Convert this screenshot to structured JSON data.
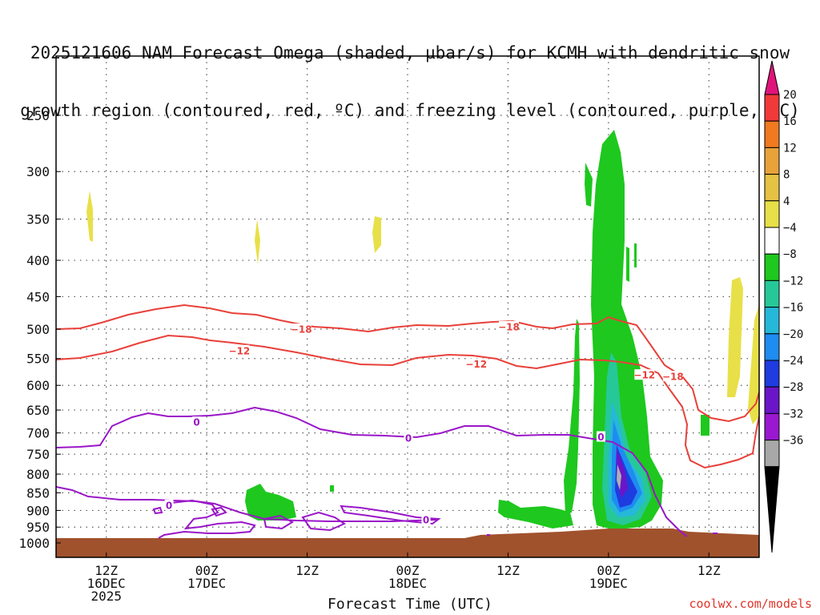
{
  "title_lines": [
    "2025121606 NAM Forecast Omega (shaded, µbar/s) for KCMH with dendritic snow",
    "growth region (contoured, red, ºC) and freezing level (contoured, purple, ºC)"
  ],
  "credit": "coolwx.com/models",
  "chart_data": {
    "type": "time-height cross-section",
    "title": "2025121606 NAM Forecast Omega (shaded, µbar/s) for KCMH with dendritic snow growth region (contoured, red, ºC) and freezing level (contoured, purple, ºC)",
    "xlabel": "Forecast Time (UTC)",
    "ylabel": "",
    "x_range_hours": [
      0,
      84
    ],
    "y_range_hPa": [
      1000,
      200
    ],
    "y_scale": "log-pressure",
    "grid": true,
    "y_ticks": [
      250,
      300,
      350,
      400,
      450,
      500,
      550,
      600,
      650,
      700,
      750,
      800,
      850,
      900,
      950,
      1000
    ],
    "x_ticks": [
      {
        "hour": 6,
        "label": "12Z",
        "sub1": "16DEC",
        "sub2": "2025"
      },
      {
        "hour": 18,
        "label": "00Z",
        "sub1": "17DEC",
        "sub2": ""
      },
      {
        "hour": 30,
        "label": "12Z",
        "sub1": "",
        "sub2": ""
      },
      {
        "hour": 42,
        "label": "00Z",
        "sub1": "18DEC",
        "sub2": ""
      },
      {
        "hour": 54,
        "label": "12Z",
        "sub1": "",
        "sub2": ""
      },
      {
        "hour": 66,
        "label": "00Z",
        "sub1": "19DEC",
        "sub2": ""
      },
      {
        "hour": 78,
        "label": "12Z",
        "sub1": "",
        "sub2": ""
      }
    ],
    "colorbar": {
      "labels": [
        "20",
        "16",
        "12",
        "8",
        "4",
        "−4",
        "−8",
        "−12",
        "−16",
        "−20",
        "−24",
        "−28",
        "−32",
        "−36"
      ],
      "colors": [
        "#f03a3a",
        "#f07a20",
        "#e8a23a",
        "#e6c244",
        "#e8e048",
        "#ffffff",
        "#1ec81e",
        "#26c898",
        "#26b8d8",
        "#1e8cf0",
        "#1e3ce0",
        "#6a16c8",
        "#9a18d0",
        "#a8a8a8"
      ],
      "top_arrow_color": "#e0147a",
      "bottom_arrow_color": "#000000"
    },
    "contour_labels": [
      {
        "text": "−18",
        "hour": 29.3,
        "p": 500,
        "color": "#e8403a"
      },
      {
        "text": "−18",
        "hour": 54.1,
        "p": 496,
        "color": "#e8403a"
      },
      {
        "text": "−18",
        "hour": 73.7,
        "p": 583,
        "color": "#e8403a"
      },
      {
        "text": "−12",
        "hour": 21.9,
        "p": 536,
        "color": "#e8403a"
      },
      {
        "text": "−12",
        "hour": 50.2,
        "p": 560,
        "color": "#e8403a"
      },
      {
        "text": "−12",
        "hour": 70.3,
        "p": 580,
        "color": "#e8403a"
      },
      {
        "text": "0",
        "hour": 16.8,
        "p": 676,
        "color": "#9a16c8"
      },
      {
        "text": "0",
        "hour": 42.1,
        "p": 712,
        "color": "#9a16c8"
      },
      {
        "text": "0",
        "hour": 65.1,
        "p": 709,
        "color": "#9a16c8"
      },
      {
        "text": "0",
        "hour": 13.5,
        "p": 885,
        "color": "#9a16c8"
      },
      {
        "text": "0",
        "hour": 44.2,
        "p": 928,
        "color": "#9a16c8"
      }
    ],
    "surface_color": "#a0522d",
    "dendritic_color": "#e8403a",
    "freezing_color": "#9a16c8"
  }
}
